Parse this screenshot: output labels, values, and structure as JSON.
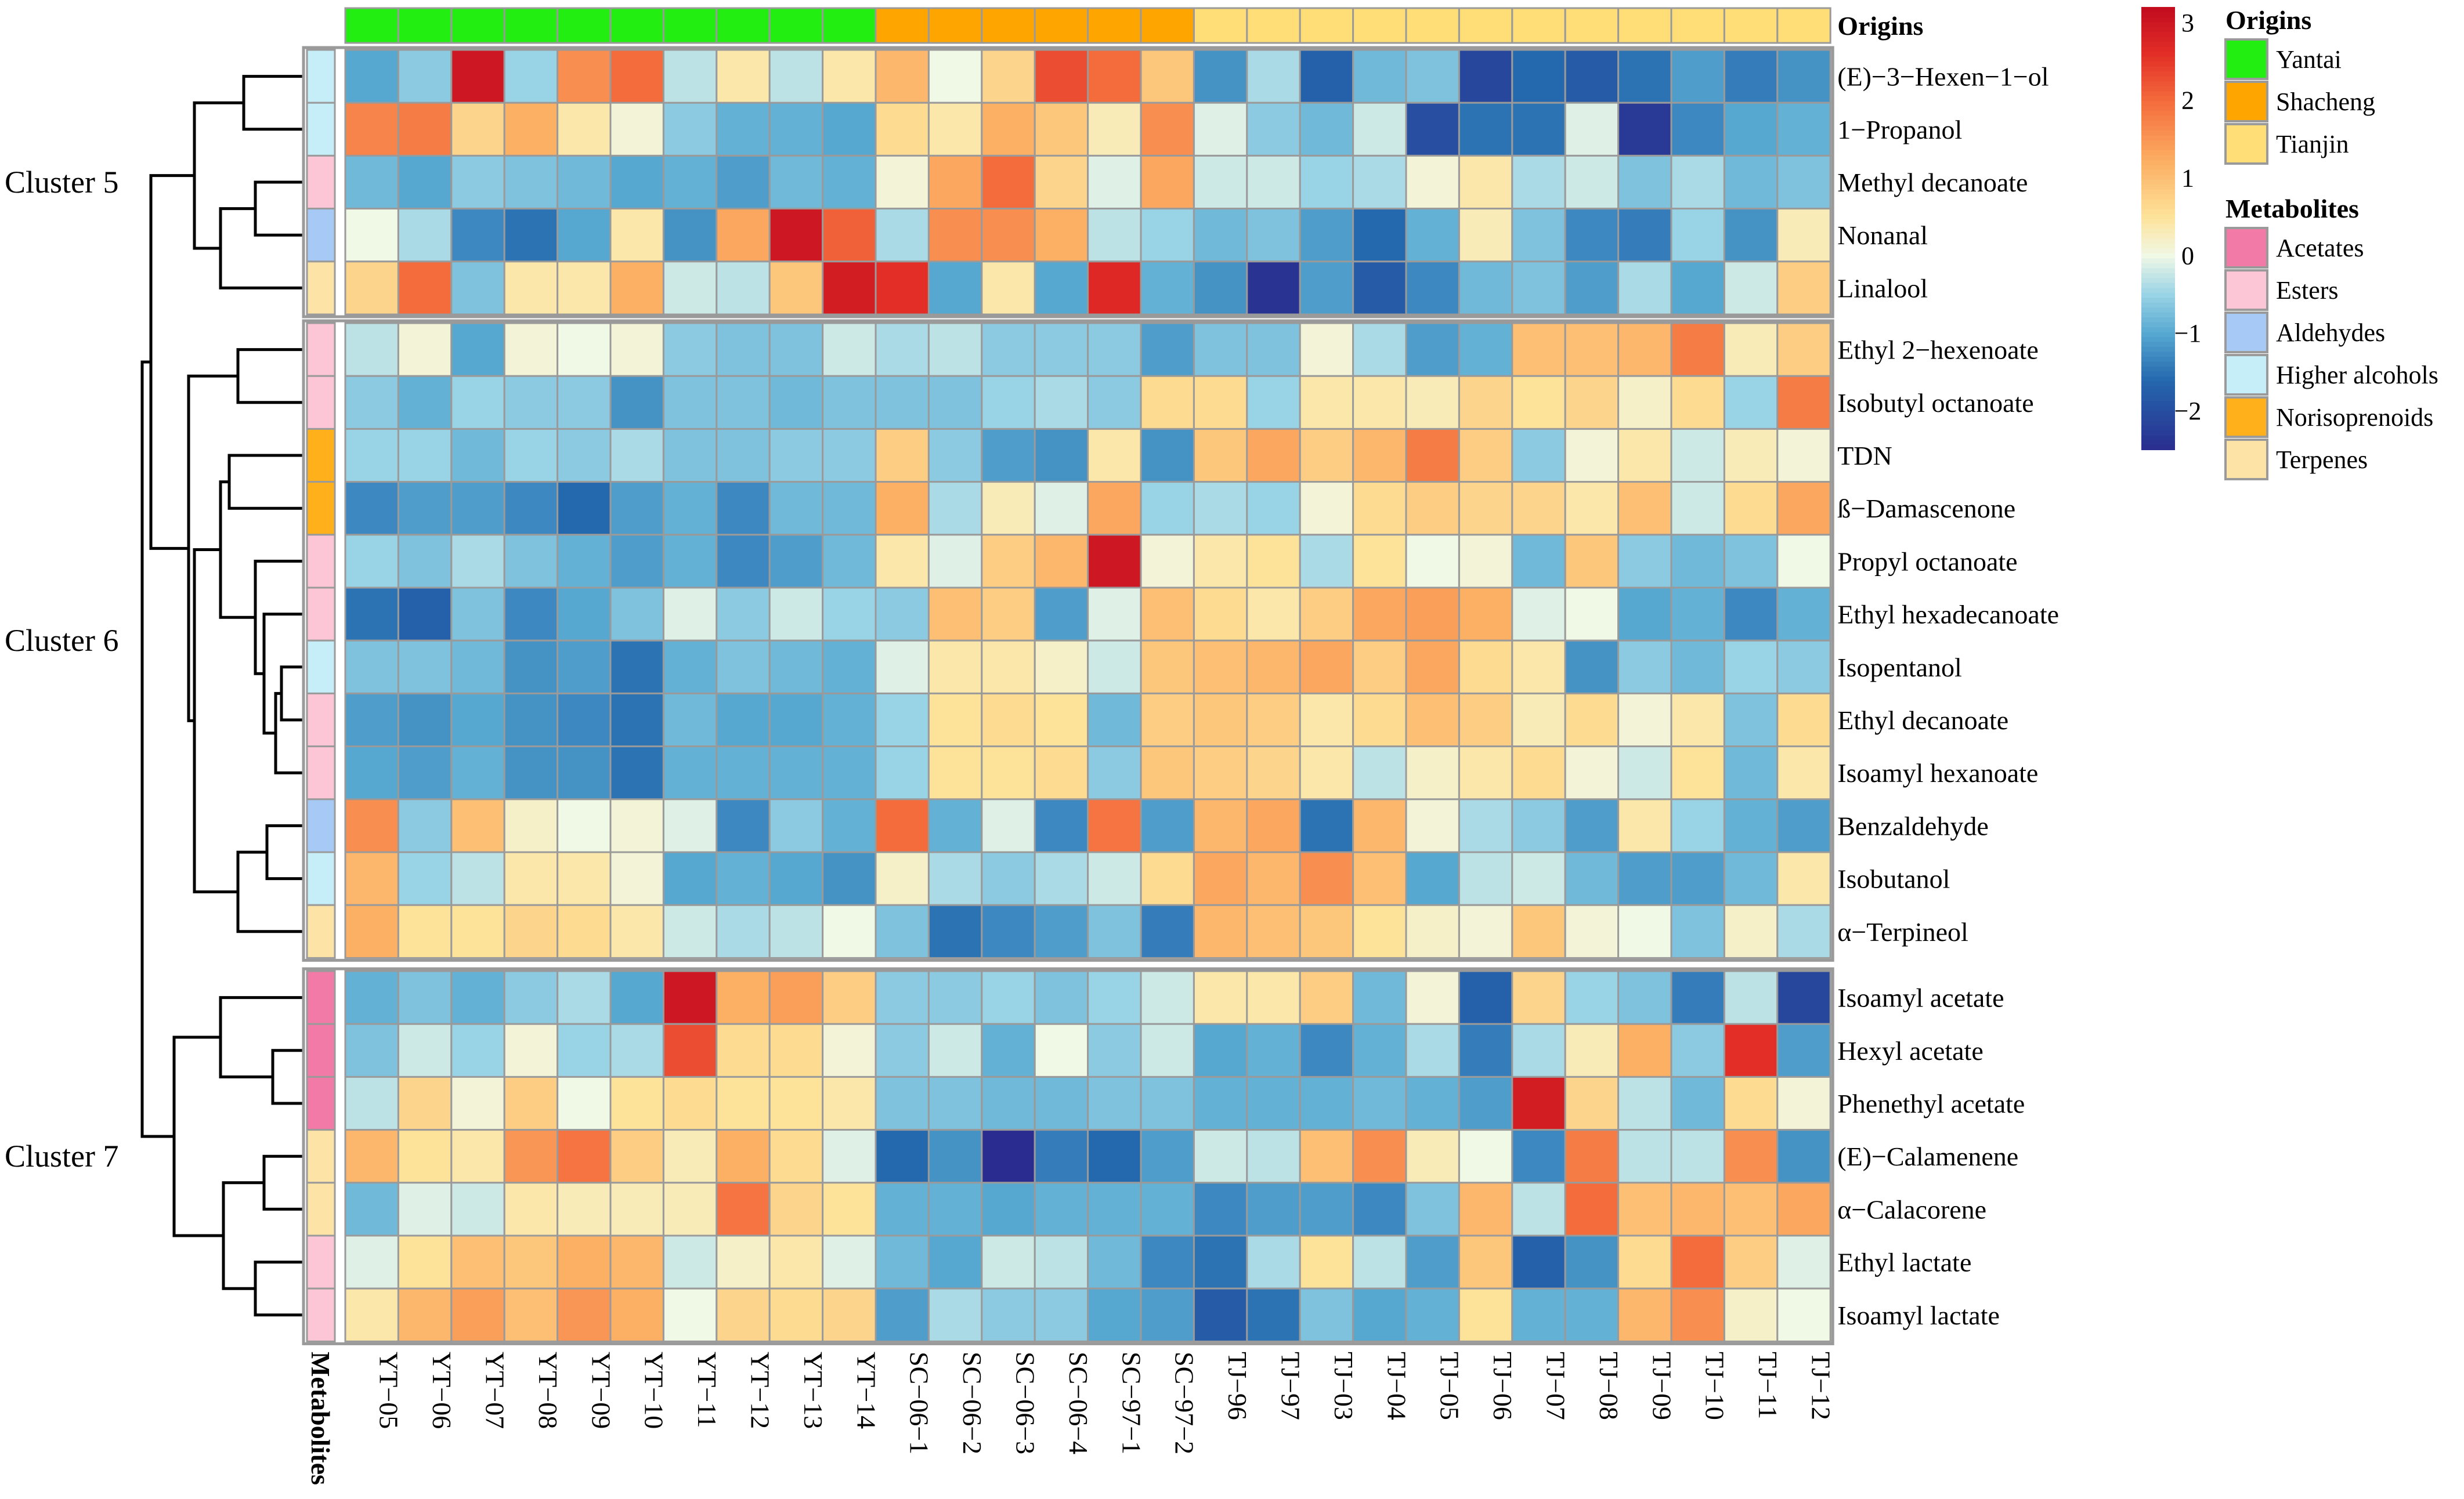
{
  "chart_data": {
    "type": "heatmap",
    "columns": [
      "YT−05",
      "YT−06",
      "YT−07",
      "YT−08",
      "YT−09",
      "YT−10",
      "YT−11",
      "YT−12",
      "YT−13",
      "YT−14",
      "SC−06−1",
      "SC−06−2",
      "SC−06−3",
      "SC−06−4",
      "SC−97−1",
      "SC−97−2",
      "TJ−96",
      "TJ−97",
      "TJ−03",
      "TJ−04",
      "TJ−05",
      "TJ−06",
      "TJ−07",
      "TJ−08",
      "TJ−09",
      "TJ−10",
      "TJ−11",
      "TJ−12"
    ],
    "column_origins": [
      "Yantai",
      "Yantai",
      "Yantai",
      "Yantai",
      "Yantai",
      "Yantai",
      "Yantai",
      "Yantai",
      "Yantai",
      "Yantai",
      "Shacheng",
      "Shacheng",
      "Shacheng",
      "Shacheng",
      "Shacheng",
      "Shacheng",
      "Tianjin",
      "Tianjin",
      "Tianjin",
      "Tianjin",
      "Tianjin",
      "Tianjin",
      "Tianjin",
      "Tianjin",
      "Tianjin",
      "Tianjin",
      "Tianjin",
      "Tianjin"
    ],
    "rows": [
      "(E)−3−Hexen−1−ol",
      "1−Propanol",
      "Methyl decanoate",
      "Nonanal",
      "Linalool",
      "Ethyl 2−hexenoate",
      "Isobutyl octanoate",
      "TDN",
      "ß−Damascenone",
      "Propyl octanoate",
      "Ethyl hexadecanoate",
      "Isopentanol",
      "Ethyl decanoate",
      "Isoamyl hexanoate",
      "Benzaldehyde",
      "Isobutanol",
      "α−Terpineol",
      "Isoamyl acetate",
      "Hexyl acetate",
      "Phenethyl acetate",
      "(E)−Calamenene",
      "α−Calacorene",
      "Ethyl lactate",
      "Isoamyl lactate"
    ],
    "row_metabolites": [
      "Higher alcohols",
      "Higher alcohols",
      "Esters",
      "Aldehydes",
      "Terpenes",
      "Esters",
      "Esters",
      "Norisoprenoids",
      "Norisoprenoids",
      "Esters",
      "Esters",
      "Higher alcohols",
      "Esters",
      "Esters",
      "Aldehydes",
      "Higher alcohols",
      "Terpenes",
      "Acetates",
      "Acetates",
      "Acetates",
      "Terpenes",
      "Terpenes",
      "Esters",
      "Esters"
    ],
    "clusters": [
      {
        "label": "Cluster 5",
        "rows": [
          0,
          4
        ]
      },
      {
        "label": "Cluster 6",
        "rows": [
          5,
          16
        ]
      },
      {
        "label": "Cluster 7",
        "rows": [
          17,
          23
        ]
      }
    ],
    "values": [
      [
        -1.0,
        -0.6,
        3.0,
        -0.5,
        1.6,
        2.0,
        -0.3,
        0.4,
        -0.3,
        0.4,
        1.1,
        0.0,
        0.7,
        2.3,
        2.0,
        0.9,
        -1.2,
        -0.4,
        -1.7,
        -0.8,
        -0.7,
        -2.1,
        -1.6,
        -1.8,
        -1.5,
        -1.1,
        -1.4,
        -1.2
      ],
      [
        1.7,
        1.8,
        0.7,
        1.2,
        0.4,
        0.1,
        -0.6,
        -0.9,
        -0.9,
        -1.0,
        0.6,
        0.4,
        1.2,
        0.9,
        0.3,
        1.6,
        -0.1,
        -0.6,
        -0.8,
        -0.2,
        -2.0,
        -1.5,
        -1.5,
        -0.1,
        -2.3,
        -1.3,
        -1.0,
        -0.9
      ],
      [
        -0.8,
        -1.0,
        -0.6,
        -0.7,
        -0.8,
        -1.0,
        -0.9,
        -1.1,
        -0.8,
        -0.9,
        0.1,
        1.3,
        2.0,
        0.7,
        -0.1,
        1.3,
        -0.2,
        -0.2,
        -0.5,
        -0.4,
        0.1,
        0.4,
        -0.4,
        -0.2,
        -0.7,
        -0.4,
        -0.8,
        -0.7
      ],
      [
        0.0,
        -0.4,
        -1.3,
        -1.5,
        -1.0,
        0.4,
        -1.2,
        1.3,
        3.0,
        2.1,
        -0.4,
        1.6,
        1.6,
        1.2,
        -0.3,
        -0.5,
        -0.8,
        -0.7,
        -1.1,
        -1.6,
        -0.9,
        0.3,
        -0.7,
        -1.3,
        -1.4,
        -0.5,
        -1.2,
        0.3
      ],
      [
        0.7,
        2.0,
        -0.7,
        0.4,
        0.4,
        1.2,
        -0.2,
        -0.3,
        0.9,
        2.9,
        2.6,
        -1.0,
        0.4,
        -1.0,
        2.7,
        -0.9,
        -1.2,
        -2.4,
        -1.1,
        -1.8,
        -1.3,
        -0.8,
        -0.7,
        -1.1,
        -0.4,
        -1.0,
        -0.2,
        0.8
      ],
      [
        -0.3,
        0.1,
        -1.0,
        0.1,
        0.0,
        0.1,
        -0.6,
        -0.7,
        -0.7,
        -0.2,
        -0.4,
        -0.3,
        -0.6,
        -0.6,
        -0.6,
        -1.1,
        -0.7,
        -0.7,
        0.1,
        -0.4,
        -1.1,
        -0.9,
        1.0,
        1.0,
        1.1,
        1.8,
        0.3,
        0.8
      ],
      [
        -0.6,
        -0.9,
        -0.5,
        -0.6,
        -0.6,
        -1.2,
        -0.7,
        -0.7,
        -0.8,
        -0.7,
        -0.7,
        -0.7,
        -0.5,
        -0.4,
        -0.6,
        0.6,
        0.6,
        -0.5,
        0.4,
        0.4,
        0.3,
        0.7,
        0.5,
        0.7,
        0.2,
        0.6,
        -0.5,
        1.8
      ],
      [
        -0.5,
        -0.5,
        -0.8,
        -0.5,
        -0.6,
        -0.4,
        -0.7,
        -0.7,
        -0.6,
        -0.6,
        0.8,
        -0.6,
        -1.1,
        -1.2,
        0.4,
        -1.2,
        0.9,
        1.3,
        0.8,
        1.1,
        1.8,
        0.8,
        -0.6,
        0.1,
        0.4,
        -0.2,
        0.3,
        0.1
      ],
      [
        -1.3,
        -1.1,
        -1.1,
        -1.3,
        -1.6,
        -1.1,
        -0.9,
        -1.3,
        -0.8,
        -0.8,
        1.2,
        -0.4,
        0.3,
        -0.1,
        1.3,
        -0.5,
        -0.4,
        -0.5,
        0.1,
        0.6,
        0.8,
        0.7,
        0.7,
        0.4,
        1.0,
        -0.2,
        0.6,
        1.3
      ],
      [
        -0.5,
        -0.7,
        -0.4,
        -0.7,
        -0.9,
        -1.1,
        -0.9,
        -1.3,
        -1.1,
        -0.8,
        0.4,
        -0.1,
        0.8,
        1.1,
        3.0,
        0.1,
        0.4,
        0.5,
        -0.4,
        0.5,
        0.0,
        0.1,
        -0.8,
        0.9,
        -0.6,
        -0.8,
        -0.7,
        0.0
      ],
      [
        -1.5,
        -1.7,
        -0.7,
        -1.3,
        -1.0,
        -0.7,
        -0.1,
        -0.6,
        -0.2,
        -0.5,
        -0.6,
        1.0,
        0.8,
        -1.1,
        -0.1,
        1.0,
        0.6,
        0.4,
        0.8,
        1.3,
        1.4,
        1.2,
        -0.1,
        0.0,
        -1.0,
        -0.9,
        -1.3,
        -0.9
      ],
      [
        -0.7,
        -0.7,
        -0.8,
        -1.2,
        -1.1,
        -1.5,
        -0.9,
        -0.7,
        -0.8,
        -0.9,
        -0.1,
        0.4,
        0.4,
        0.2,
        -0.2,
        0.9,
        1.0,
        1.1,
        1.3,
        0.8,
        1.3,
        0.6,
        0.4,
        -1.2,
        -0.6,
        -0.8,
        -0.5,
        -0.6
      ],
      [
        -1.1,
        -1.2,
        -1.0,
        -1.2,
        -1.3,
        -1.5,
        -0.8,
        -1.0,
        -1.0,
        -0.9,
        -0.5,
        0.5,
        0.6,
        0.5,
        -0.8,
        0.8,
        0.9,
        0.8,
        0.4,
        0.6,
        1.0,
        0.8,
        0.3,
        0.6,
        0.1,
        0.4,
        -0.7,
        0.6
      ],
      [
        -1.0,
        -1.1,
        -0.9,
        -1.2,
        -1.2,
        -1.5,
        -0.9,
        -0.9,
        -0.9,
        -0.9,
        -0.5,
        0.5,
        0.5,
        0.6,
        -0.6,
        0.9,
        0.8,
        0.7,
        0.4,
        -0.3,
        0.2,
        0.4,
        0.6,
        0.1,
        -0.2,
        0.5,
        -0.8,
        0.4
      ],
      [
        1.6,
        -0.6,
        1.0,
        0.2,
        0.0,
        0.1,
        -0.1,
        -1.3,
        -0.6,
        -0.9,
        2.0,
        -0.9,
        -0.1,
        -1.3,
        1.9,
        -1.1,
        1.1,
        1.3,
        -1.5,
        1.1,
        0.1,
        -0.4,
        -0.6,
        -1.1,
        0.4,
        -0.5,
        -0.9,
        -1.1
      ],
      [
        1.1,
        -0.5,
        -0.3,
        0.4,
        0.4,
        0.1,
        -1.0,
        -0.9,
        -1.0,
        -1.2,
        0.2,
        -0.4,
        -0.6,
        -0.4,
        -0.2,
        0.6,
        1.3,
        1.1,
        1.6,
        1.0,
        -1.0,
        -0.3,
        -0.2,
        -0.8,
        -1.1,
        -1.1,
        -0.8,
        0.4
      ],
      [
        1.2,
        0.5,
        0.5,
        0.7,
        0.6,
        0.4,
        -0.2,
        -0.4,
        -0.3,
        0.0,
        -0.7,
        -1.5,
        -1.3,
        -1.1,
        -0.7,
        -1.4,
        1.1,
        1.0,
        0.9,
        0.5,
        0.2,
        0.1,
        0.9,
        0.1,
        0.0,
        -0.7,
        0.2,
        -0.4
      ],
      [
        -0.9,
        -0.7,
        -0.9,
        -0.6,
        -0.4,
        -1.0,
        3.0,
        1.2,
        1.4,
        0.8,
        -0.6,
        -0.6,
        -0.5,
        -0.7,
        -0.5,
        -0.2,
        0.4,
        0.4,
        0.8,
        -0.8,
        0.1,
        -1.7,
        0.7,
        -0.5,
        -0.7,
        -1.4,
        -0.3,
        -2.1
      ],
      [
        -0.7,
        -0.2,
        -0.5,
        0.1,
        -0.5,
        -0.4,
        2.3,
        0.6,
        0.6,
        0.1,
        -0.6,
        -0.2,
        -0.9,
        0.0,
        -0.6,
        -0.2,
        -1.0,
        -0.9,
        -1.3,
        -0.9,
        -0.4,
        -1.4,
        -0.4,
        0.3,
        1.2,
        -0.6,
        2.6,
        -1.1
      ],
      [
        -0.3,
        0.7,
        0.1,
        0.8,
        0.0,
        0.5,
        0.6,
        0.5,
        0.5,
        0.4,
        -0.7,
        -0.7,
        -0.8,
        -0.8,
        -0.7,
        -0.7,
        -0.9,
        -0.9,
        -0.9,
        -0.8,
        -0.9,
        -1.1,
        2.9,
        0.7,
        -0.3,
        -0.8,
        0.6,
        0.1
      ],
      [
        1.1,
        0.5,
        0.4,
        1.5,
        1.9,
        0.8,
        0.3,
        1.2,
        0.6,
        -0.1,
        -1.6,
        -1.2,
        -2.5,
        -1.4,
        -1.6,
        -1.1,
        -0.2,
        -0.3,
        1.0,
        1.6,
        0.3,
        0.0,
        -1.3,
        1.8,
        -0.3,
        -0.3,
        1.6,
        -1.2
      ],
      [
        -0.8,
        -0.1,
        -0.2,
        0.4,
        0.3,
        0.3,
        0.3,
        1.9,
        0.7,
        0.5,
        -0.9,
        -0.9,
        -1.0,
        -0.9,
        -0.9,
        -0.9,
        -1.3,
        -1.1,
        -1.1,
        -1.3,
        -0.7,
        1.1,
        -0.3,
        2.0,
        1.0,
        1.1,
        1.0,
        1.3
      ],
      [
        -0.1,
        0.5,
        1.0,
        0.9,
        1.2,
        1.1,
        -0.2,
        0.2,
        0.4,
        -0.1,
        -0.8,
        -1.0,
        -0.2,
        -0.3,
        -0.8,
        -1.3,
        -1.5,
        -0.4,
        0.5,
        -0.3,
        -1.1,
        0.9,
        -1.7,
        -1.2,
        0.6,
        2.0,
        0.8,
        -0.1
      ],
      [
        0.4,
        1.1,
        1.4,
        1.0,
        1.5,
        1.2,
        0.0,
        0.7,
        0.6,
        0.7,
        -1.1,
        -0.4,
        -0.6,
        -0.6,
        -1.0,
        -1.1,
        -1.8,
        -1.5,
        -0.7,
        -1.0,
        -0.9,
        0.5,
        -0.9,
        -0.9,
        1.1,
        1.6,
        0.2,
        0.0
      ]
    ],
    "color_scale": {
      "min": -2.5,
      "max": 3.2,
      "ticks": [
        3,
        2,
        1,
        0,
        -1,
        -2
      ],
      "stops": [
        [
          -2.5,
          "#2a2d8f"
        ],
        [
          -1.6,
          "#2468ae"
        ],
        [
          -1.0,
          "#56a8d1"
        ],
        [
          -0.5,
          "#99d3e6"
        ],
        [
          0.0,
          "#f0f8e6"
        ],
        [
          0.5,
          "#fde39a"
        ],
        [
          1.2,
          "#fcb064"
        ],
        [
          2.0,
          "#f46b3c"
        ],
        [
          2.6,
          "#e22e27"
        ],
        [
          3.2,
          "#c20b1f"
        ]
      ]
    },
    "legend_origins": {
      "title": "Origins",
      "items": [
        {
          "label": "Yantai",
          "color": "#22ee11"
        },
        {
          "label": "Shacheng",
          "color": "#ffa500"
        },
        {
          "label": "Tianjin",
          "color": "#ffdd77"
        }
      ]
    },
    "legend_metabolites": {
      "title": "Metabolites",
      "items": [
        {
          "label": "Acetates",
          "color": "#f27aa7"
        },
        {
          "label": "Esters",
          "color": "#fdc6d6"
        },
        {
          "label": "Aldehydes",
          "color": "#a6c9f6"
        },
        {
          "label": "Higher alcohols",
          "color": "#c5eef9"
        },
        {
          "label": "Norisoprenoids",
          "color": "#ffb01a"
        },
        {
          "label": "Terpenes",
          "color": "#fde3a6"
        }
      ]
    },
    "annotation_labels": {
      "top": "Origins",
      "left": "Metabolites"
    }
  }
}
